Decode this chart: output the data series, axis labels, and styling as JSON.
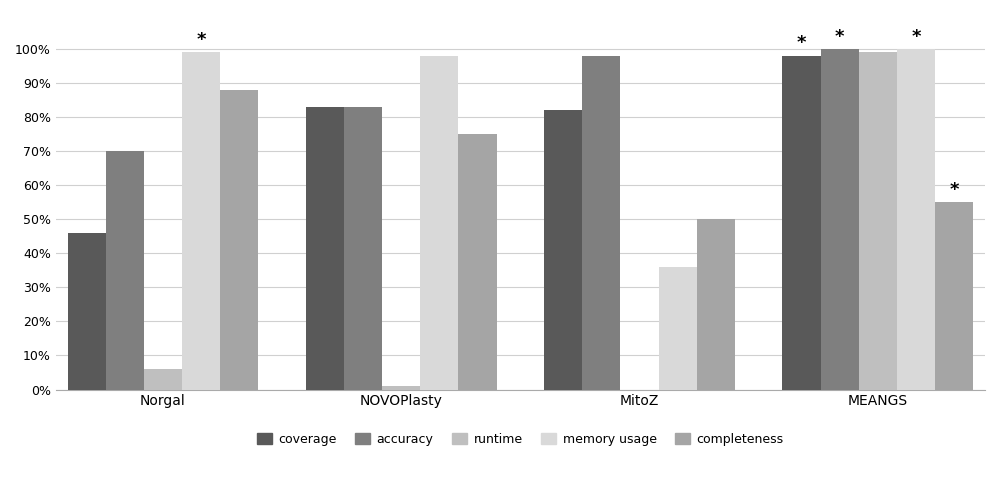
{
  "categories": [
    "Norgal",
    "NOVOPlasty",
    "MitoZ",
    "MEANGS"
  ],
  "series": {
    "coverage": [
      46,
      83,
      82,
      98
    ],
    "accuracy": [
      70,
      83,
      98,
      100
    ],
    "runtime": [
      6,
      1,
      0,
      99
    ],
    "memory_usage": [
      99,
      98,
      36,
      100
    ],
    "completeness": [
      88,
      75,
      50,
      55
    ]
  },
  "colors": {
    "coverage": "#595959",
    "accuracy": "#7f7f7f",
    "runtime": "#bfbfbf",
    "memory_usage": "#d9d9d9",
    "completeness": "#a5a5a5"
  },
  "legend_labels": [
    "coverage",
    "accuracy",
    "runtime",
    "memory usage",
    "completeness"
  ],
  "star_annotations": {
    "Norgal": [
      "memory_usage"
    ],
    "NOVOPlasty": [],
    "MitoZ": [],
    "MEANGS": [
      "coverage",
      "accuracy",
      "memory_usage",
      "completeness"
    ]
  },
  "ylim": [
    0,
    110
  ],
  "yticks": [
    0,
    10,
    20,
    30,
    40,
    50,
    60,
    70,
    80,
    90,
    100
  ],
  "yticklabels": [
    "0%",
    "10%",
    "20%",
    "30%",
    "40%",
    "50%",
    "60%",
    "70%",
    "80%",
    "90%",
    "100%"
  ],
  "bar_width": 0.16,
  "background_color": "#ffffff",
  "grid_color": "#d0d0d0",
  "star_fontsize": 13,
  "label_fontsize": 10,
  "tick_fontsize": 9,
  "legend_fontsize": 9
}
